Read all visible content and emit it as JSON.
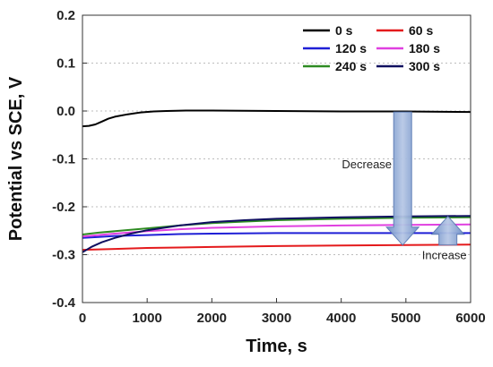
{
  "chart_data": {
    "type": "line",
    "xlabel": "Time, s",
    "ylabel": "Potential vs SCE, V",
    "xlim": [
      0,
      6000
    ],
    "ylim": [
      -0.4,
      0.2
    ],
    "xticks": [
      0,
      1000,
      2000,
      3000,
      4000,
      5000,
      6000
    ],
    "yticks": [
      -0.4,
      -0.3,
      -0.2,
      -0.1,
      0.0,
      0.1,
      0.2
    ],
    "xtick_labels": [
      "0",
      "1000",
      "2000",
      "3000",
      "4000",
      "5000",
      "6000"
    ],
    "ytick_labels": [
      "-0.4",
      "-0.3",
      "-0.2",
      "-0.1",
      "0.0",
      "0.1",
      "0.2"
    ],
    "grid": "dotted-horizontal",
    "legend_position": "top-right",
    "series": [
      {
        "name": "0 s",
        "color": "#000000",
        "x": [
          0,
          100,
          200,
          300,
          400,
          500,
          700,
          900,
          1100,
          1300,
          1600,
          2000,
          3000,
          4000,
          5000,
          6000
        ],
        "y": [
          -0.032,
          -0.031,
          -0.028,
          -0.022,
          -0.016,
          -0.012,
          -0.007,
          -0.003,
          -0.001,
          0.0,
          0.001,
          0.001,
          0.0,
          -0.001,
          -0.001,
          -0.002
        ]
      },
      {
        "name": "60 s",
        "color": "#e41a1c",
        "x": [
          0,
          250,
          500,
          1000,
          1500,
          2000,
          3000,
          4000,
          5000,
          6000
        ],
        "y": [
          -0.29,
          -0.289,
          -0.288,
          -0.286,
          -0.285,
          -0.284,
          -0.282,
          -0.281,
          -0.28,
          -0.279
        ]
      },
      {
        "name": "120 s",
        "color": "#1f1fd6",
        "x": [
          0,
          250,
          500,
          1000,
          1500,
          2000,
          3000,
          4000,
          5000,
          6000
        ],
        "y": [
          -0.265,
          -0.263,
          -0.261,
          -0.259,
          -0.257,
          -0.256,
          -0.255,
          -0.255,
          -0.255,
          -0.255
        ]
      },
      {
        "name": "180 s",
        "color": "#e040e0",
        "x": [
          0,
          250,
          500,
          1000,
          1500,
          2000,
          3000,
          4000,
          5000,
          6000
        ],
        "y": [
          -0.262,
          -0.259,
          -0.256,
          -0.251,
          -0.247,
          -0.244,
          -0.241,
          -0.239,
          -0.238,
          -0.237
        ]
      },
      {
        "name": "240 s",
        "color": "#2e8b22",
        "x": [
          0,
          250,
          500,
          1000,
          1500,
          2000,
          3000,
          4000,
          5000,
          6000
        ],
        "y": [
          -0.258,
          -0.254,
          -0.251,
          -0.245,
          -0.239,
          -0.234,
          -0.228,
          -0.225,
          -0.223,
          -0.222
        ]
      },
      {
        "name": "300 s",
        "color": "#101060",
        "x": [
          0,
          150,
          300,
          500,
          750,
          1000,
          1500,
          2000,
          2500,
          3000,
          4000,
          5000,
          6000
        ],
        "y": [
          -0.295,
          -0.283,
          -0.274,
          -0.265,
          -0.256,
          -0.249,
          -0.239,
          -0.232,
          -0.228,
          -0.225,
          -0.222,
          -0.22,
          -0.219
        ]
      }
    ],
    "annotations": [
      {
        "text": "Decrease",
        "direction": "down",
        "x": 4950,
        "y_from": -0.002,
        "y_to": -0.28
      },
      {
        "text": "Increase",
        "direction": "up",
        "x": 5650,
        "y_from": -0.28,
        "y_to": -0.22
      }
    ]
  }
}
